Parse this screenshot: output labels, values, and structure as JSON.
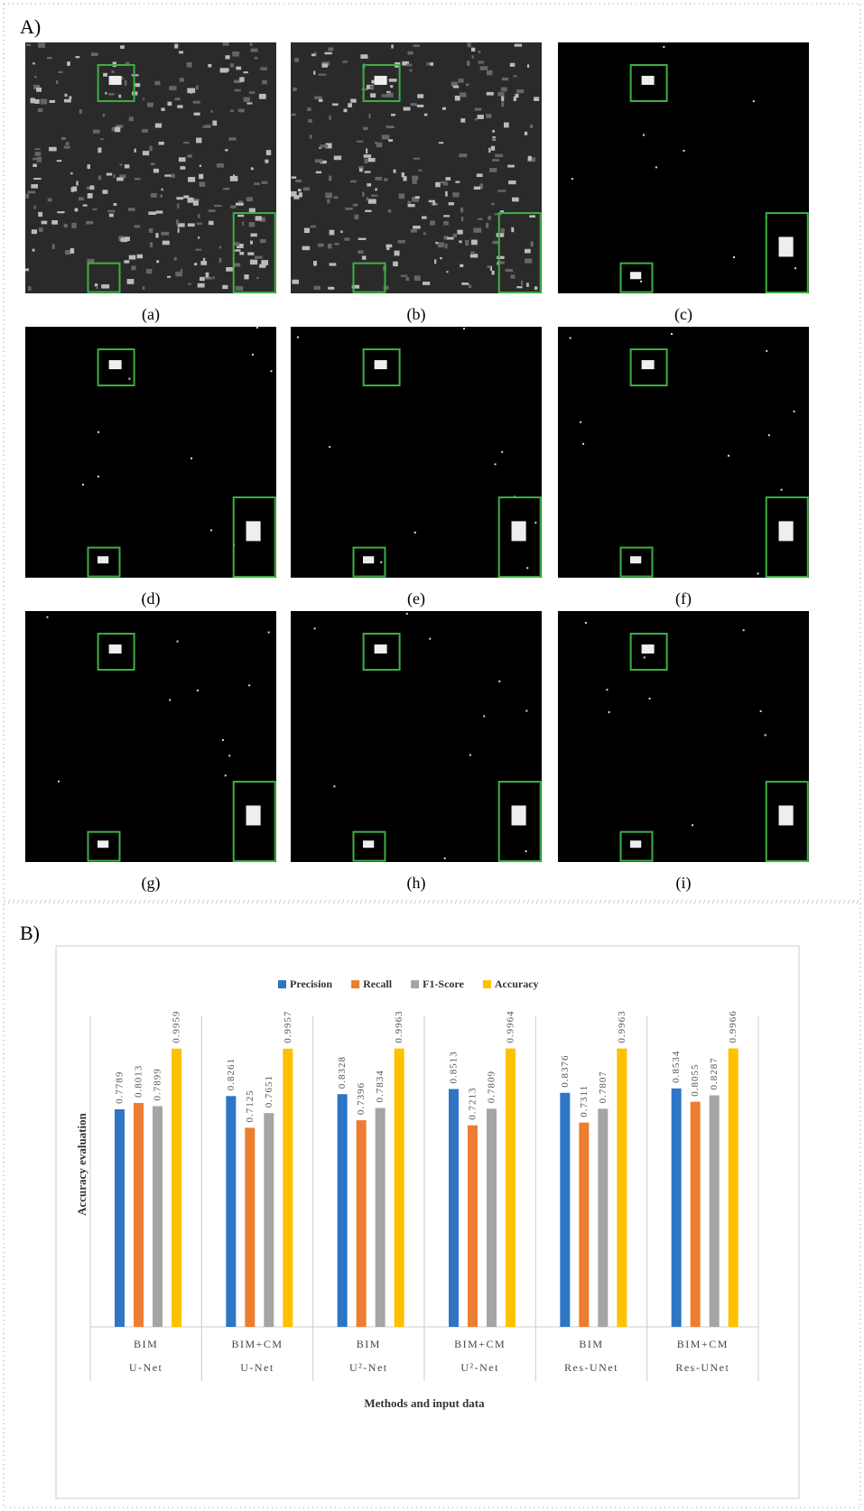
{
  "panel_a": {
    "label": "A)",
    "captions": [
      "(a)",
      "(b)",
      "(c)",
      "(d)",
      "(e)",
      "(f)",
      "(g)",
      "(h)",
      "(i)"
    ]
  },
  "chart_data": {
    "type": "bar",
    "panel_label": "B)",
    "x_label": "Methods and input data",
    "y_label": "Accuracy evaluation",
    "categories": [
      "BIM",
      "BIM+CM",
      "BIM",
      "BIM+CM",
      "BIM",
      "BIM+CM"
    ],
    "methods": [
      "U-Net",
      "U-Net",
      "U²-Net",
      "U²-Net",
      "Res-UNet",
      "Res-UNet"
    ],
    "series": [
      {
        "name": "Precision",
        "color": "#2e75c6",
        "values": [
          0.7789,
          0.8261,
          0.8328,
          0.8513,
          0.8376,
          0.8534
        ]
      },
      {
        "name": "Recall",
        "color": "#ed7d31",
        "values": [
          0.8013,
          0.7125,
          0.7396,
          0.7213,
          0.7311,
          0.8055
        ]
      },
      {
        "name": "F1-Score",
        "color": "#a5a5a5",
        "values": [
          0.7899,
          0.7651,
          0.7834,
          0.7809,
          0.7807,
          0.8287
        ]
      },
      {
        "name": "Accuracy",
        "color": "#ffc000",
        "values": [
          0.9959,
          0.9957,
          0.9963,
          0.9964,
          0.9963,
          0.9966
        ]
      }
    ],
    "ylim": [
      0,
      1.05
    ],
    "legend": "top"
  }
}
